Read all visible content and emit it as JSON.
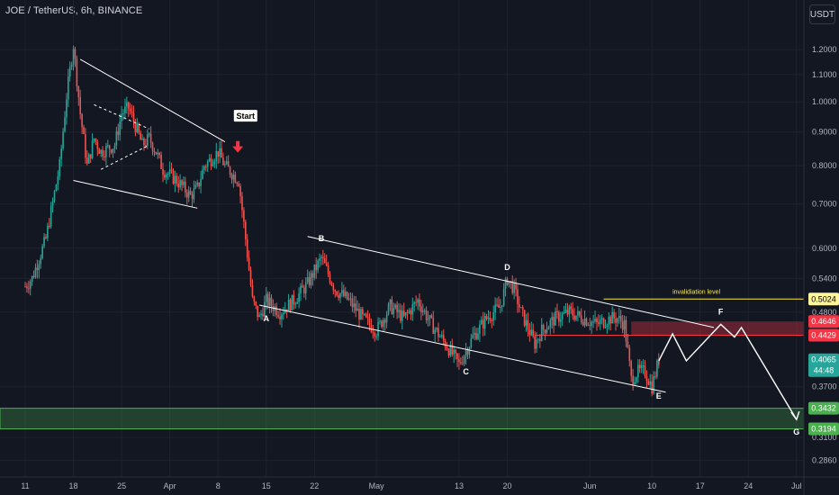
{
  "header": {
    "symbol_title": "JOE / TetherUS, 6h, BINANCE",
    "currency_button": "USDT"
  },
  "colors": {
    "background": "#131722",
    "up": "#26a69a",
    "down": "#ef5350",
    "resistance_zone": "#f23645",
    "support_zone": "#4caf50",
    "invalidation_line": "#ffeb3b",
    "annotation": "#ffffff",
    "start_arrow": "#f23645"
  },
  "chart_data": {
    "type": "candlestick",
    "y_scale": "log",
    "ylim": [
      0.27,
      1.34
    ],
    "y_ticks": [
      "1.2000",
      "1.1000",
      "1.0000",
      "0.9000",
      "0.8000",
      "0.7000",
      "0.6000",
      "0.5400",
      "0.4800",
      "0.3700",
      "0.3100",
      "0.2860"
    ],
    "x_ticks": [
      "11",
      "18",
      "25",
      "Apr",
      "8",
      "15",
      "22",
      "May",
      "13",
      "20",
      "Jun",
      "10",
      "17",
      "24",
      "Jul"
    ],
    "price_path": [
      [
        "11",
        0.525
      ],
      [
        "12",
        0.54
      ],
      [
        "14",
        0.62
      ],
      [
        "16",
        0.8
      ],
      [
        "17",
        1.02
      ],
      [
        "18",
        1.22
      ],
      [
        "19",
        0.96
      ],
      [
        "20",
        0.8
      ],
      [
        "21",
        0.88
      ],
      [
        "22",
        0.84
      ],
      [
        "24",
        0.86
      ],
      [
        "25",
        0.96
      ],
      [
        "26",
        0.98
      ],
      [
        "27",
        0.92
      ],
      [
        "28",
        0.86
      ],
      [
        "29",
        0.88
      ],
      [
        "30",
        0.84
      ],
      [
        "31",
        0.79
      ],
      [
        "Apr 2",
        0.76
      ],
      [
        "Apr 4",
        0.72
      ],
      [
        "Apr 5",
        0.74
      ],
      [
        "Apr 6",
        0.8
      ],
      [
        "Apr 8",
        0.84
      ],
      [
        "Apr 9",
        0.8
      ],
      [
        "Apr 10",
        0.78
      ],
      [
        "Apr 11",
        0.76
      ],
      [
        "Apr 12",
        0.62
      ],
      [
        "Apr 13",
        0.5
      ],
      [
        "Apr 14",
        0.47
      ],
      [
        "Apr 15",
        0.5
      ],
      [
        "Apr 17",
        0.48
      ],
      [
        "Apr 19",
        0.5
      ],
      [
        "Apr 21",
        0.53
      ],
      [
        "Apr 23",
        0.58
      ],
      [
        "Apr 25",
        0.52
      ],
      [
        "Apr 27",
        0.5
      ],
      [
        "Apr 29",
        0.47
      ],
      [
        "May 1",
        0.45
      ],
      [
        "May 3",
        0.49
      ],
      [
        "May 5",
        0.47
      ],
      [
        "May 7",
        0.5
      ],
      [
        "May 9",
        0.46
      ],
      [
        "May 11",
        0.43
      ],
      [
        "May 13",
        0.4
      ],
      [
        "May 15",
        0.44
      ],
      [
        "May 17",
        0.47
      ],
      [
        "May 19",
        0.49
      ],
      [
        "May 20",
        0.54
      ],
      [
        "May 21",
        0.52
      ],
      [
        "May 22",
        0.48
      ],
      [
        "May 24",
        0.43
      ],
      [
        "May 25",
        0.45
      ],
      [
        "May 27",
        0.47
      ],
      [
        "May 29",
        0.48
      ],
      [
        "May 31",
        0.47
      ],
      [
        "Jun 2",
        0.46
      ],
      [
        "Jun 4",
        0.47
      ],
      [
        "Jun 5",
        0.47
      ],
      [
        "Jun 6",
        0.46
      ],
      [
        "Jun 7",
        0.38
      ],
      [
        "Jun 8",
        0.39
      ],
      [
        "Jun 9",
        0.39
      ],
      [
        "Jun 10",
        0.37
      ],
      [
        "Jun 11",
        0.4065
      ]
    ],
    "levels": {
      "invalidation_label": "invalidiation level",
      "invalidation_price": "0.5024",
      "resistance_zone": [
        "0.4429",
        "0.4646"
      ],
      "support_zone": [
        "0.3194",
        "0.3432"
      ],
      "current_price": "0.4065",
      "countdown": "44:48"
    },
    "wave_labels": [
      "A",
      "B",
      "C",
      "D",
      "E",
      "F",
      "G"
    ],
    "start_label": "Start",
    "projection_path": [
      [
        "Jun 11",
        0.405
      ],
      [
        "Jun 13",
        0.445
      ],
      [
        "Jun 15",
        0.405
      ],
      [
        "Jun 20",
        0.46
      ],
      [
        "Jun 22",
        0.44
      ],
      [
        "Jun 23",
        0.455
      ],
      [
        "Jul 1",
        0.33
      ]
    ]
  }
}
